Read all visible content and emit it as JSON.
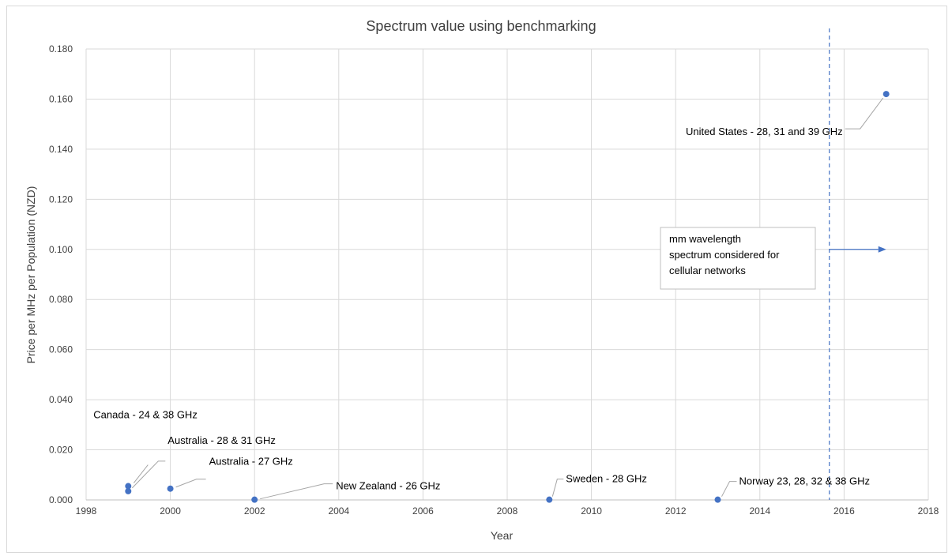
{
  "chart_data": {
    "type": "scatter",
    "title": "Spectrum value using benchmarking",
    "xlabel": "Year",
    "ylabel": "Price per MHz per Population (NZD)",
    "xlim": [
      1998,
      2018
    ],
    "ylim": [
      0,
      0.18
    ],
    "xticks": [
      "1998",
      "2000",
      "2002",
      "2004",
      "2006",
      "2008",
      "2010",
      "2012",
      "2014",
      "2016",
      "2018"
    ],
    "yticks": [
      "0.000",
      "0.020",
      "0.040",
      "0.060",
      "0.080",
      "0.100",
      "0.120",
      "0.140",
      "0.160",
      "0.180"
    ],
    "grid": true,
    "point_color": "#4472c4",
    "points": [
      {
        "x": 1999,
        "y": 0.0055,
        "label": "Canada - 24 & 38 GHz"
      },
      {
        "x": 1999,
        "y": 0.0035,
        "label": "Australia - 28 & 31 GHz"
      },
      {
        "x": 2000,
        "y": 0.0045,
        "label": "Australia - 27 GHz"
      },
      {
        "x": 2002,
        "y": 0.0001,
        "label": "New Zealand - 26 GHz"
      },
      {
        "x": 2009,
        "y": 0.0001,
        "label": "Sweden - 28 GHz"
      },
      {
        "x": 2013,
        "y": 0.0001,
        "label": "Norway 23, 28, 32 & 38 GHz"
      },
      {
        "x": 2017,
        "y": 0.162,
        "label": "United States - 28, 31 and 39 GHz"
      }
    ],
    "marker_line": {
      "x": 2015.65,
      "color": "#4472c4",
      "style": "dashed"
    },
    "annotation_box": {
      "lines": [
        "mm wavelength",
        "spectrum considered for",
        "cellular networks"
      ],
      "arrow_y": 0.1
    }
  }
}
